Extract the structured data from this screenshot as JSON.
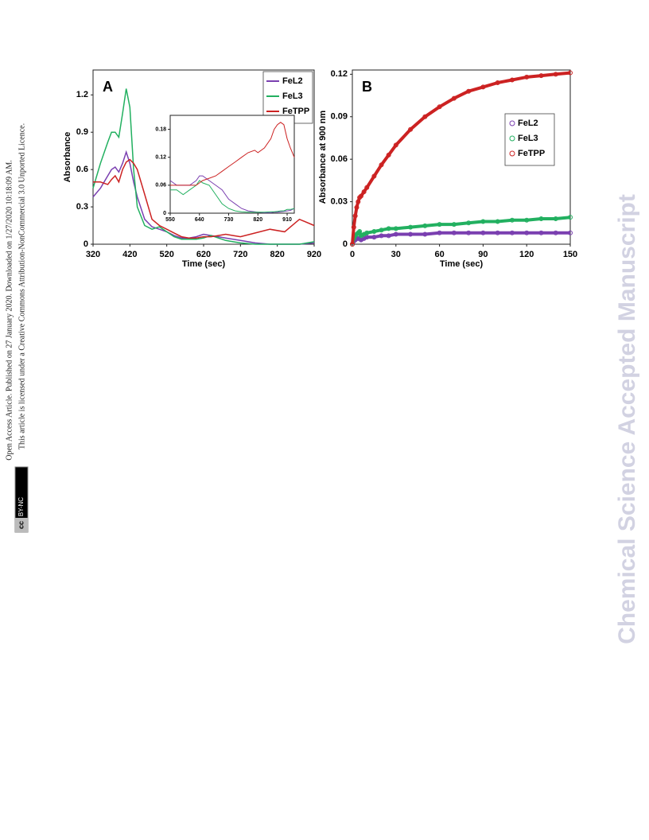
{
  "sidebar": {
    "line1": "Open Access Article. Published on 27 January 2020. Downloaded on 1/27/2020 10:18:09 AM.",
    "line2": "This article is licensed under a Creative Commons Attribution-NonCommercial 3.0 Unported Licence.",
    "badge_cc": "cc",
    "badge_license": "BY-NC"
  },
  "watermark": "Chemical Science Accepted Manuscript",
  "chart_data": [
    {
      "type": "line",
      "panel_label": "A",
      "x_label": "Time (sec)",
      "y_label": "Absorbance",
      "x": [
        320,
        340,
        360,
        370,
        380,
        390,
        400,
        410,
        420,
        430,
        440,
        460,
        480,
        500,
        520,
        540,
        560,
        580,
        600,
        620,
        640,
        660,
        680,
        700,
        720,
        760,
        800,
        840,
        880,
        920
      ],
      "xlim": [
        320,
        920
      ],
      "xticks": [
        320,
        420,
        520,
        620,
        720,
        820,
        920
      ],
      "ylim": [
        0,
        1.4
      ],
      "yticks": [
        0,
        0.3,
        0.6,
        0.9,
        1.2
      ],
      "legend": "upper right",
      "series": [
        {
          "name": "FeL2",
          "color": "#7a3fb0",
          "values": [
            0.38,
            0.45,
            0.55,
            0.6,
            0.62,
            0.58,
            0.65,
            0.74,
            0.65,
            0.5,
            0.38,
            0.2,
            0.14,
            0.12,
            0.1,
            0.07,
            0.05,
            0.05,
            0.06,
            0.08,
            0.07,
            0.06,
            0.05,
            0.04,
            0.03,
            0.01,
            0,
            0,
            0,
            0.01
          ]
        },
        {
          "name": "FeL3",
          "color": "#22b060",
          "values": [
            0.45,
            0.65,
            0.82,
            0.9,
            0.9,
            0.86,
            1.05,
            1.25,
            1.1,
            0.6,
            0.3,
            0.15,
            0.12,
            0.14,
            0.1,
            0.06,
            0.04,
            0.04,
            0.04,
            0.05,
            0.07,
            0.05,
            0.03,
            0.02,
            0.01,
            0,
            0,
            0,
            0,
            0.02
          ]
        },
        {
          "name": "FeTPP",
          "color": "#cc2222",
          "values": [
            0.5,
            0.5,
            0.48,
            0.52,
            0.55,
            0.5,
            0.6,
            0.66,
            0.68,
            0.65,
            0.6,
            0.4,
            0.2,
            0.15,
            0.12,
            0.09,
            0.06,
            0.05,
            0.05,
            0.06,
            0.06,
            0.07,
            0.08,
            0.07,
            0.06,
            0.09,
            0.12,
            0.1,
            0.2,
            0.15
          ]
        }
      ]
    },
    {
      "type": "line",
      "x": [
        550,
        570,
        590,
        610,
        630,
        640,
        650,
        670,
        690,
        710,
        730,
        750,
        770,
        790,
        810,
        820,
        840,
        860,
        870,
        880,
        890,
        900,
        910,
        920,
        932
      ],
      "xlim": [
        550,
        932
      ],
      "xticks": [
        550,
        640,
        730,
        820,
        910
      ],
      "ylim": [
        0,
        0.21
      ],
      "yticks": [
        0,
        0.06,
        0.12,
        0.18
      ],
      "series": [
        {
          "color": "#7a3fb0",
          "values": [
            0.07,
            0.06,
            0.06,
            0.06,
            0.07,
            0.08,
            0.08,
            0.07,
            0.06,
            0.05,
            0.03,
            0.02,
            0.01,
            0.005,
            0.003,
            0.002,
            0.001,
            0.001,
            0.002,
            0.002,
            0.003,
            0.004,
            0.005,
            0.006,
            0.01
          ]
        },
        {
          "color": "#22b060",
          "values": [
            0.05,
            0.05,
            0.04,
            0.05,
            0.06,
            0.07,
            0.065,
            0.06,
            0.04,
            0.02,
            0.01,
            0.005,
            0.003,
            0.002,
            0.002,
            0.002,
            0.002,
            0.003,
            0.003,
            0.004,
            0.005,
            0.005,
            0.008,
            0.008,
            0.01
          ]
        },
        {
          "color": "#cc2222",
          "values": [
            0.06,
            0.06,
            0.06,
            0.06,
            0.06,
            0.065,
            0.07,
            0.075,
            0.08,
            0.09,
            0.1,
            0.11,
            0.12,
            0.13,
            0.135,
            0.13,
            0.14,
            0.16,
            0.18,
            0.19,
            0.195,
            0.19,
            0.16,
            0.14,
            0.12
          ]
        }
      ]
    },
    {
      "type": "scatter",
      "panel_label": "B",
      "x_label": "Time (sec)",
      "y_label": "Absorbance at 900 nm",
      "x": [
        0,
        1,
        2,
        3,
        4,
        5,
        6,
        8,
        10,
        15,
        20,
        25,
        30,
        40,
        50,
        60,
        70,
        80,
        90,
        100,
        110,
        120,
        130,
        140,
        150
      ],
      "xlim": [
        0,
        150
      ],
      "xticks": [
        0,
        30,
        60,
        90,
        120,
        150
      ],
      "ylim": [
        0,
        0.123
      ],
      "yticks": [
        0,
        0.03,
        0.06,
        0.09,
        0.12
      ],
      "legend": "center right",
      "marker": "open-circle",
      "series": [
        {
          "name": "FeL2",
          "color": "#7a3fb0",
          "values": [
            0,
            0.002,
            0.003,
            0.004,
            0.004,
            0.004,
            0.003,
            0.004,
            0.005,
            0.005,
            0.006,
            0.006,
            0.007,
            0.007,
            0.007,
            0.008,
            0.008,
            0.008,
            0.008,
            0.008,
            0.008,
            0.008,
            0.008,
            0.008,
            0.008
          ]
        },
        {
          "name": "FeL3",
          "color": "#22b060",
          "values": [
            0,
            0.004,
            0.006,
            0.007,
            0.008,
            0.009,
            0.006,
            0.007,
            0.008,
            0.009,
            0.01,
            0.011,
            0.011,
            0.012,
            0.013,
            0.014,
            0.014,
            0.015,
            0.016,
            0.016,
            0.017,
            0.017,
            0.018,
            0.018,
            0.019
          ]
        },
        {
          "name": "FeTPP",
          "color": "#cc2222",
          "values": [
            0,
            0.012,
            0.02,
            0.026,
            0.03,
            0.033,
            0.034,
            0.037,
            0.04,
            0.048,
            0.056,
            0.063,
            0.07,
            0.081,
            0.09,
            0.097,
            0.103,
            0.108,
            0.111,
            0.114,
            0.116,
            0.118,
            0.119,
            0.12,
            0.121
          ]
        }
      ]
    }
  ]
}
